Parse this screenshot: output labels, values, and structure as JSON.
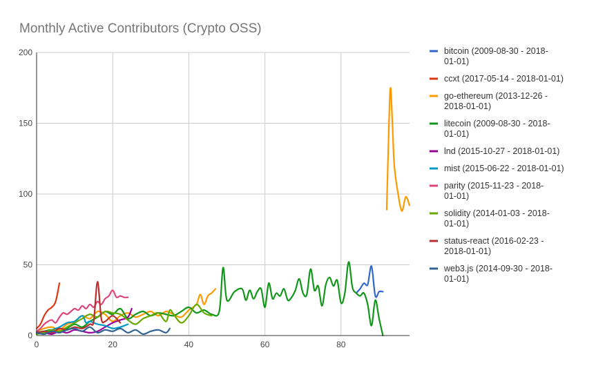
{
  "chart_data": {
    "type": "line",
    "title": "Monthly Active Contributors (Crypto OSS)",
    "xlabel": "",
    "ylabel": "",
    "xlim": [
      0,
      98
    ],
    "ylim": [
      0,
      200
    ],
    "x_ticks": [
      0,
      20,
      40,
      60,
      80
    ],
    "y_ticks": [
      0,
      50,
      100,
      150,
      200
    ],
    "grid": true,
    "legend_position": "right",
    "series": [
      {
        "name": "bitcoin (2009-08-30 - 2018-01-01)",
        "color": "#3366cc",
        "x": [
          84,
          85,
          86,
          87,
          88,
          89,
          90,
          91
        ],
        "y": [
          30,
          33,
          37,
          36,
          49,
          28,
          31,
          31
        ]
      },
      {
        "name": "ccxt (2017-05-14 - 2018-01-01)",
        "color": "#dc3912",
        "x": [
          0,
          1,
          2,
          3,
          4,
          5,
          6
        ],
        "y": [
          5,
          8,
          14,
          18,
          20,
          24,
          37
        ]
      },
      {
        "name": "go-ethereum (2013-12-26 - 2018-01-01)",
        "color": "#ff9900",
        "x": [
          0,
          2,
          4,
          6,
          8,
          10,
          12,
          14,
          16,
          18,
          20,
          22,
          24,
          26,
          28,
          30,
          32,
          34,
          36,
          38,
          40,
          42,
          43,
          44,
          45,
          46,
          47,
          92,
          92.6,
          93,
          93.5,
          94,
          95,
          96,
          97,
          98
        ],
        "y": [
          3,
          5,
          6,
          4,
          8,
          10,
          14,
          12,
          17,
          15,
          10,
          14,
          16,
          13,
          15,
          17,
          14,
          17,
          15,
          13,
          18,
          22,
          29,
          22,
          28,
          30,
          33,
          89,
          150,
          175,
          150,
          120,
          100,
          88,
          98,
          92
        ]
      },
      {
        "name": "litecoin (2009-08-30 - 2018-01-01)",
        "color": "#109618",
        "x": [
          0,
          2,
          4,
          6,
          8,
          10,
          12,
          14,
          16,
          18,
          20,
          22,
          24,
          26,
          28,
          30,
          32,
          34,
          36,
          38,
          40,
          42,
          44,
          46,
          48,
          49,
          50,
          52,
          54,
          55,
          56,
          57,
          58,
          59,
          60,
          61,
          62,
          63,
          64,
          65,
          66,
          67,
          68,
          69,
          70,
          71,
          72,
          73,
          74,
          75,
          76,
          77,
          78,
          79,
          80,
          81,
          82,
          83,
          84,
          85,
          86,
          87,
          88,
          89,
          90,
          91
        ],
        "y": [
          2,
          3,
          4,
          2,
          5,
          8,
          6,
          10,
          13,
          17,
          15,
          19,
          12,
          15,
          17,
          14,
          16,
          15,
          14,
          17,
          20,
          16,
          18,
          15,
          17,
          48,
          25,
          31,
          33,
          25,
          32,
          26,
          31,
          33,
          20,
          37,
          26,
          30,
          28,
          33,
          25,
          27,
          32,
          40,
          30,
          29,
          47,
          32,
          35,
          21,
          36,
          41,
          35,
          39,
          23,
          30,
          52,
          34,
          30,
          28,
          30,
          22,
          7,
          25,
          12,
          0
        ]
      },
      {
        "name": "lnd (2015-10-27 - 2018-01-01)",
        "color": "#990099",
        "x": [
          0,
          2,
          4,
          6,
          8,
          10,
          12,
          14,
          16,
          18,
          20,
          22,
          24,
          25
        ],
        "y": [
          1,
          2,
          1,
          3,
          2,
          4,
          3,
          2,
          3,
          6,
          9,
          11,
          13,
          19
        ]
      },
      {
        "name": "mist (2015-06-22 - 2018-01-01)",
        "color": "#0099c6",
        "x": [
          0,
          2,
          4,
          6,
          8,
          10,
          12,
          13,
          14,
          16,
          18,
          20,
          22,
          24
        ],
        "y": [
          3,
          2,
          4,
          6,
          9,
          10,
          14,
          9,
          10,
          8,
          7,
          5,
          6,
          8
        ]
      },
      {
        "name": "parity (2015-11-23 - 2018-01-01)",
        "color": "#dd4477",
        "x": [
          0,
          1,
          2,
          3,
          4,
          5,
          6,
          7,
          8,
          9,
          10,
          11,
          12,
          13,
          14,
          15,
          16,
          17,
          18,
          19,
          20,
          21,
          22,
          23,
          24
        ],
        "y": [
          3,
          5,
          8,
          10,
          11,
          9,
          13,
          16,
          15,
          17,
          19,
          18,
          21,
          19,
          22,
          20,
          24,
          22,
          26,
          28,
          32,
          27,
          28,
          27,
          27
        ]
      },
      {
        "name": "solidity (2014-01-03 - 2018-01-01)",
        "color": "#66aa00",
        "x": [
          0,
          2,
          4,
          6,
          8,
          10,
          12,
          14,
          16,
          18,
          20,
          22,
          24,
          26,
          28,
          30,
          32,
          34,
          35,
          36,
          38,
          40,
          42,
          44,
          46
        ],
        "y": [
          1,
          2,
          4,
          3,
          6,
          9,
          12,
          15,
          13,
          17,
          16,
          15,
          11,
          8,
          12,
          14,
          16,
          10,
          18,
          15,
          9,
          14,
          22,
          16,
          14
        ]
      },
      {
        "name": "status-react (2016-02-23 - 2018-01-01)",
        "color": "#b82e2e",
        "x": [
          0,
          2,
          4,
          6,
          8,
          10,
          12,
          14,
          15,
          16,
          17,
          18,
          20,
          22
        ],
        "y": [
          2,
          3,
          2,
          5,
          4,
          6,
          5,
          8,
          10,
          38,
          12,
          10,
          14,
          9
        ]
      },
      {
        "name": "web3.js (2014-09-30 - 2018-01-01)",
        "color": "#316395",
        "x": [
          0,
          2,
          4,
          6,
          8,
          10,
          12,
          14,
          16,
          18,
          20,
          22,
          24,
          26,
          28,
          30,
          32,
          34,
          35
        ],
        "y": [
          2,
          1,
          3,
          2,
          4,
          5,
          3,
          6,
          2,
          4,
          3,
          5,
          2,
          4,
          1,
          3,
          4,
          2,
          5
        ]
      }
    ]
  }
}
